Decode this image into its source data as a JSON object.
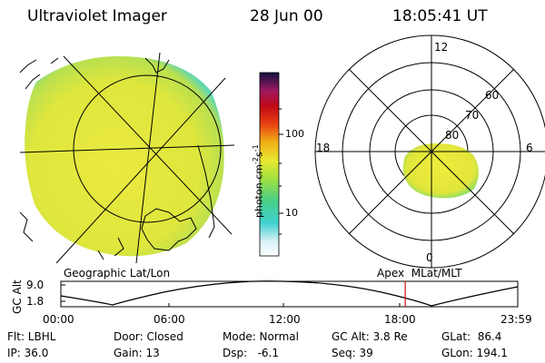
{
  "header": {
    "instrument": "Ultraviolet Imager",
    "date": "28 Jun 00",
    "time": "18:05:41 UT"
  },
  "colorbar": {
    "unit_label": "photon cm",
    "unit_sup1": "-2",
    "unit_mid": "s",
    "unit_sup2": "-1",
    "ticks": [
      "100",
      "10"
    ]
  },
  "geo_panel": {
    "label": "Geographic Lat/Lon"
  },
  "polar_panel": {
    "label": "Apex  MLat/MLT",
    "mlt_labels": {
      "top": "12",
      "right": "6",
      "bottom": "0",
      "left": "18"
    },
    "lat_labels": [
      "60",
      "70",
      "80"
    ]
  },
  "timeline": {
    "axis_label": "GC Alt",
    "y_ticks": [
      "9.0",
      "1.8"
    ],
    "x_ticks": [
      "00:00",
      "06:00",
      "12:00",
      "18:00",
      "23:59"
    ],
    "current_time_hours": 18.09
  },
  "status": {
    "flt": "Flt: LBHL",
    "ip": "IP: 36.0",
    "door": "Door: Closed",
    "gain": "Gain: 13",
    "mode": "Mode: Normal",
    "dsp": "Dsp:   -6.1",
    "gc_alt": "GC Alt: 3.8 Re",
    "seq": "Seq: 39",
    "glat": "GLat:  86.4",
    "glon": "GLon: 194.1"
  },
  "colors": {
    "aurora_main": "#e6e83a",
    "aurora_edge": "#7fdc6a",
    "marker": "#d21010"
  }
}
